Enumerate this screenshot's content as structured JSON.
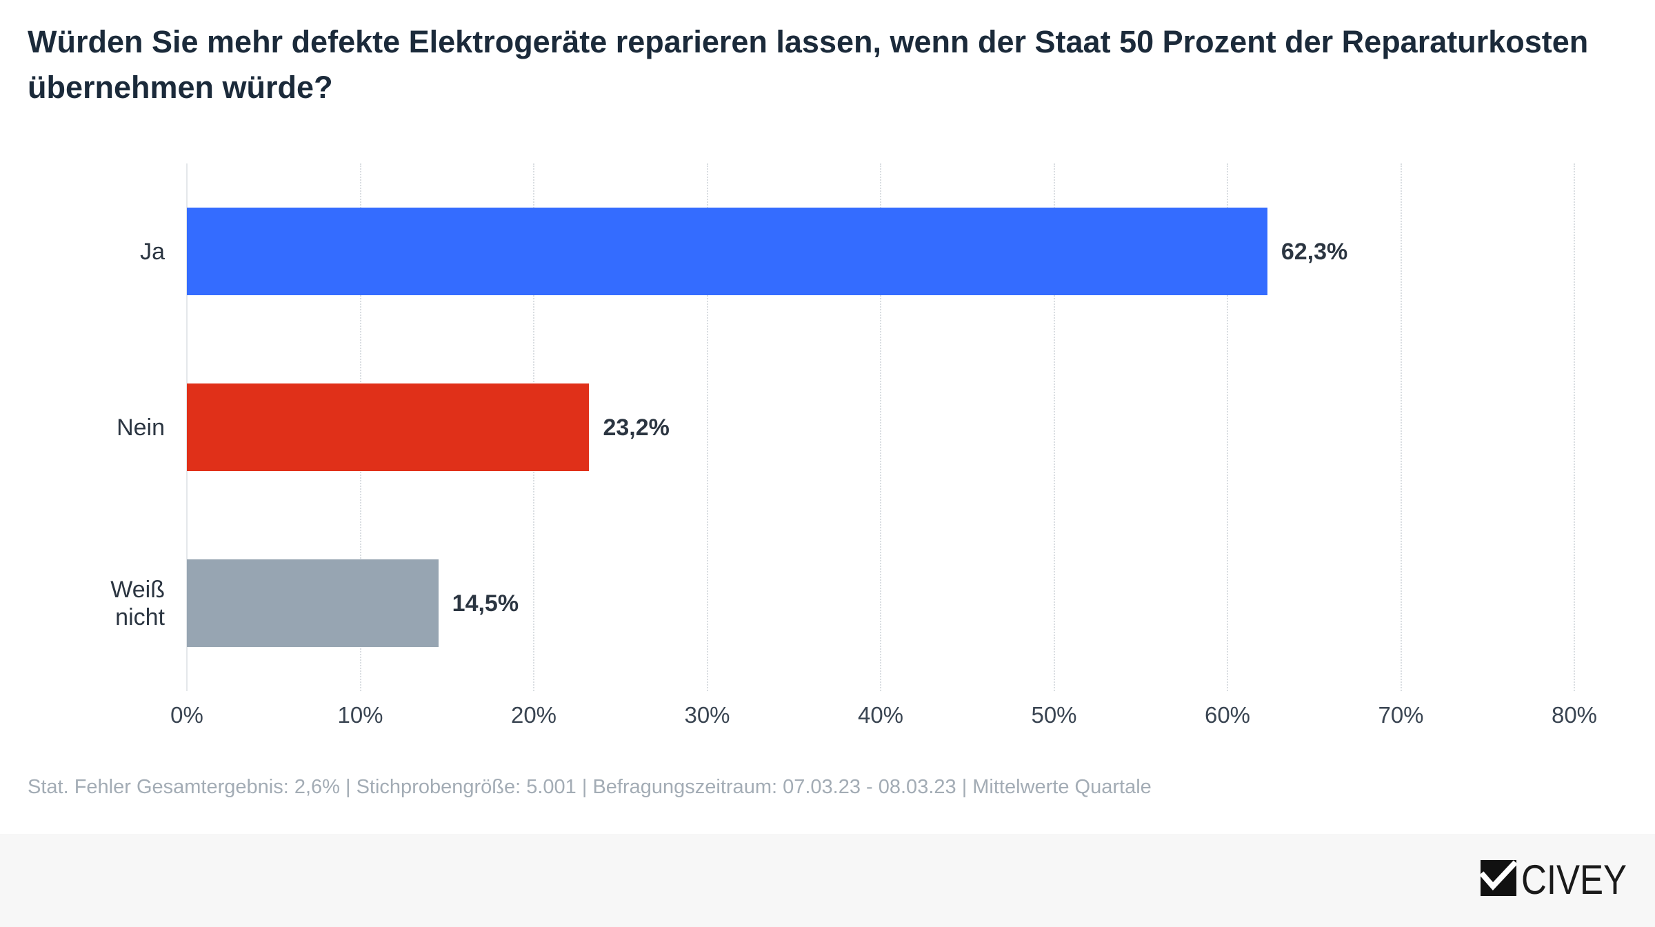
{
  "chart_data": {
    "type": "bar",
    "orientation": "horizontal",
    "title": "Würden Sie mehr defekte Elektrogeräte reparieren lassen, wenn der Staat 50 Prozent der Reparaturkosten übernehmen würde?",
    "categories": [
      "Ja",
      "Nein",
      "Weiß nicht"
    ],
    "values": [
      62.3,
      23.2,
      14.5
    ],
    "value_labels": [
      "62,3%",
      "23,2%",
      "14,5%"
    ],
    "bar_colors": [
      "#346CFF",
      "#E03019",
      "#97A5B2"
    ],
    "xlim": [
      0,
      80
    ],
    "xticks": [
      0,
      10,
      20,
      30,
      40,
      50,
      60,
      70,
      80
    ],
    "xtick_labels": [
      "0%",
      "10%",
      "20%",
      "30%",
      "40%",
      "50%",
      "60%",
      "70%",
      "80%"
    ],
    "grid": "vertical"
  },
  "footer": {
    "note": "Stat. Fehler Gesamtergebnis: 2,6% | Stichprobengröße: 5.001 | Befragungszeitraum: 07.03.23 - 08.03.23 | Mittelwerte Quartale"
  },
  "logo": {
    "text": "CIVEY",
    "icon": "civey-check-icon"
  }
}
